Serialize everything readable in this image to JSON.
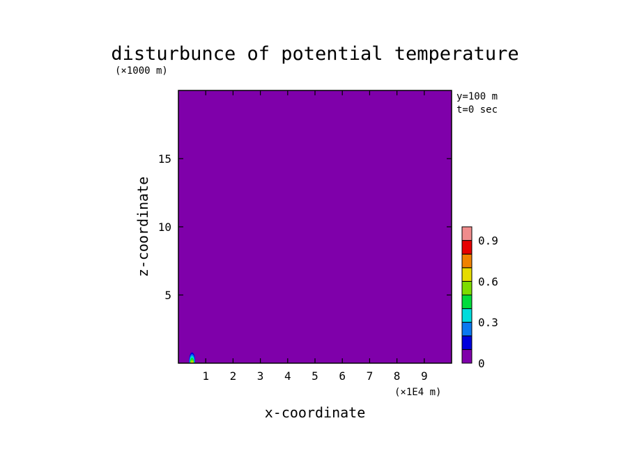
{
  "chart_data": {
    "type": "heatmap",
    "title": "disturbunce of potential temperature",
    "xlabel": "x-coordinate",
    "ylabel": "z-coordinate",
    "x_scale_label": "(×1E4 m)",
    "y_scale_label": "(×1000 m)",
    "xlim": [
      0,
      10
    ],
    "ylim": [
      0,
      20
    ],
    "x_ticks": [
      "1",
      "2",
      "3",
      "4",
      "5",
      "6",
      "7",
      "8",
      "9"
    ],
    "y_ticks": [
      "5",
      "10",
      "15"
    ],
    "annotations": [
      "y=100 m",
      "t=0 sec"
    ],
    "field_value": 0,
    "feature": {
      "description": "small warm bubble near bottom",
      "x_center": 0.5,
      "z_base": 0,
      "z_top": 0.8,
      "peak_value": 0.9
    },
    "colorbar": {
      "levels": [
        0,
        0.1,
        0.2,
        0.3,
        0.4,
        0.5,
        0.6,
        0.7,
        0.8,
        0.9,
        1.0
      ],
      "colors": [
        "#7f00aa",
        "#0000dc",
        "#0a78f0",
        "#00dcdc",
        "#00dc3c",
        "#7ddc00",
        "#e6dc00",
        "#f08200",
        "#e60000",
        "#f08c8c"
      ],
      "tick_labels": [
        "0",
        "0.3",
        "0.6",
        "0.9"
      ],
      "tick_values": [
        0,
        0.3,
        0.6,
        0.9
      ]
    }
  }
}
